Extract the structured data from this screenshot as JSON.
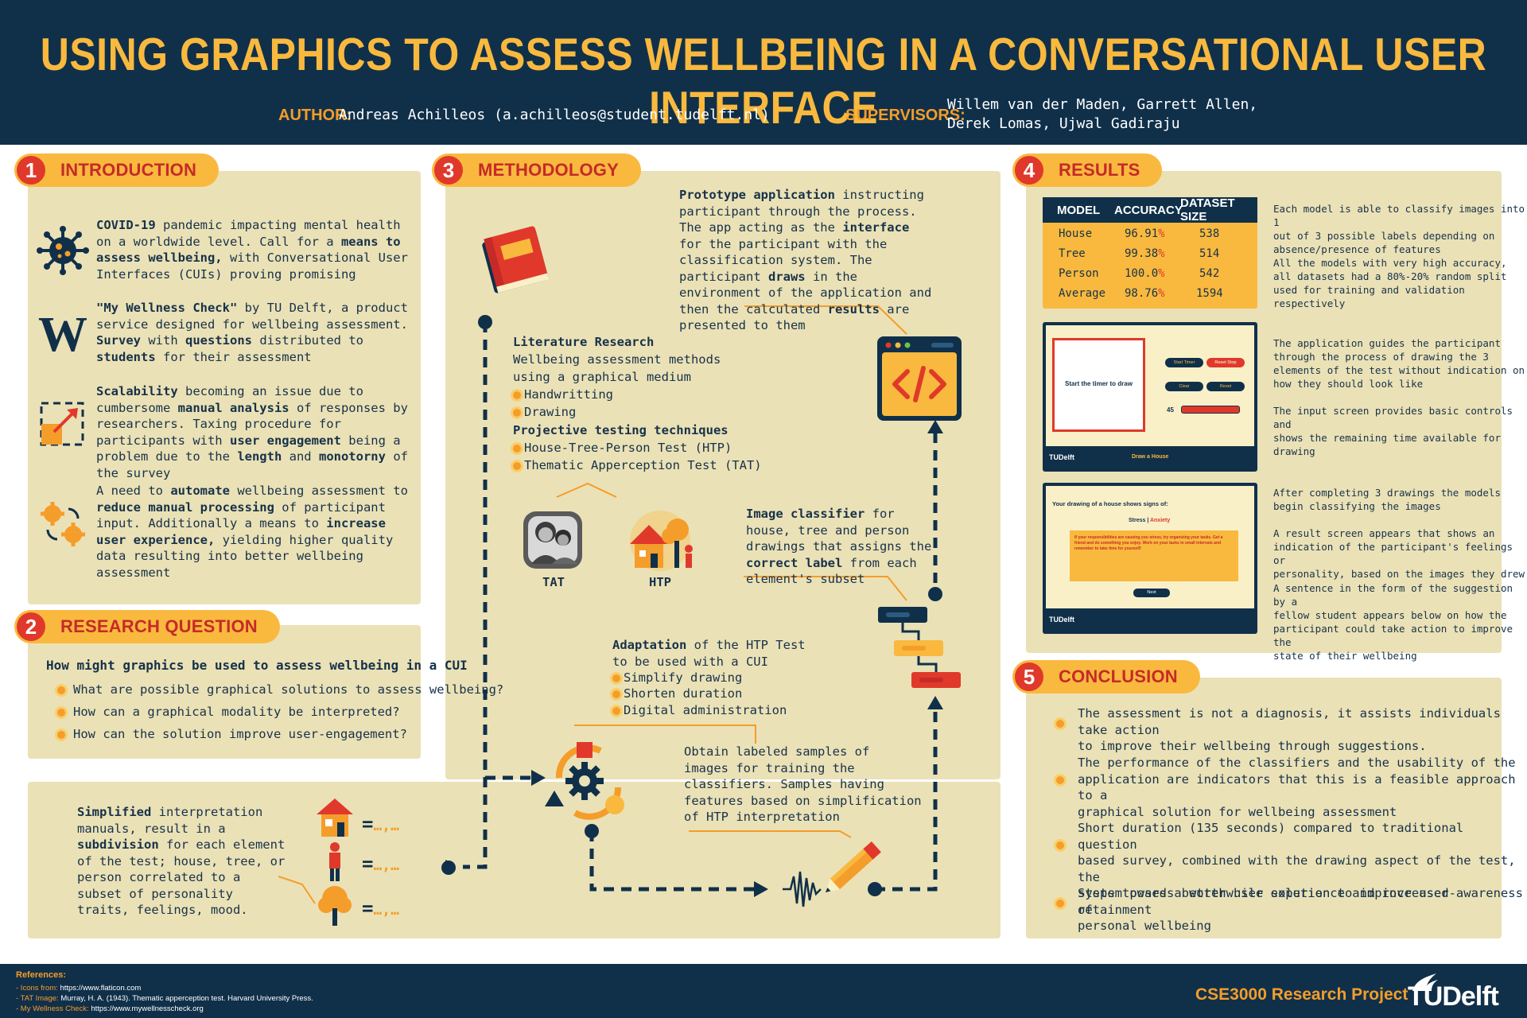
{
  "header": {
    "title": "USING GRAPHICS TO ASSESS WELLBEING IN A CONVERSATIONAL USER INTERFACE",
    "author_label": "AUTHOR:",
    "author": "Andreas Achilleos  (a.achilleos@student.tudelft.nl)",
    "supervisors_label": "SUPERVISORS:",
    "supervisors_line1": "Willem van der Maden, Garrett Allen,",
    "supervisors_line2": "Derek Lomas, Ujwal Gadiraju"
  },
  "sections": {
    "intro": {
      "num": "1",
      "title": "INTRODUCTION"
    },
    "research": {
      "num": "2",
      "title": "RESEARCH QUESTION"
    },
    "method": {
      "num": "3",
      "title": "METHODOLOGY"
    },
    "results": {
      "num": "4",
      "title": "RESULTS"
    },
    "conclusion": {
      "num": "5",
      "title": "CONCLUSION"
    }
  },
  "research_question": {
    "main": "How might graphics be used to assess wellbeing in a CUI",
    "subs": [
      "What are possible graphical solutions to assess wellbeing?",
      "How can a graphical modality be interpreted?",
      "How can the solution improve user-engagement?"
    ]
  },
  "methodology": {
    "lit_title": "Literature Research",
    "lit_line1": "Wellbeing assessment methods",
    "lit_line2": "using a graphical medium",
    "lit_items": [
      "Handwritting",
      "Drawing"
    ],
    "proj_title": "Projective testing techniques",
    "proj_items": [
      "House-Tree-Person Test (HTP)",
      "Thematic Apperception Test (TAT)"
    ],
    "tat_label": "TAT",
    "htp_label": "HTP",
    "adapt_items": [
      "Simplify drawing",
      "Shorten duration",
      "Digital administration"
    ],
    "samples_text": "Obtain labeled samples of\nimages for training the\nclassifiers. Samples having\nfeatures based on simplification\nof HTP interpretation",
    "equals_marks": [
      "=…,…",
      "=…,…",
      "=…,…"
    ]
  },
  "results": {
    "table": {
      "headers": [
        "MODEL",
        "ACCURACY",
        "DATASET SIZE"
      ],
      "rows": [
        {
          "model": "House",
          "acc": "96.91",
          "size": "538"
        },
        {
          "model": "Tree",
          "acc": "99.38",
          "size": "514"
        },
        {
          "model": "Person",
          "acc": "100.0",
          "size": "542"
        },
        {
          "model": "Average",
          "acc": "98.76",
          "size": "1594"
        }
      ],
      "pct": "%"
    },
    "desc1a": "Each model is able to classify images into 1\nout of 3 possible labels depending on\nabsence/presence of features",
    "desc1b": "All the models with very high accuracy,\nall datasets had a 80%-20% random split\nused for training and validation respectively",
    "desc2a": "The application guides the participant\nthrough the process of drawing the 3\nelements of the test without indication on\nhow they should look like",
    "desc2b": "The input screen provides basic controls and\nshows the remaining time available for\ndrawing",
    "desc3a": "After completing 3 drawings the models\nbegin classifying the images",
    "desc3b": "A result screen appears that shows an\nindication of the participant's feelings or\npersonality, based on the images they drew",
    "desc3c": "A sentence in the form of the suggestion by a\nfellow student appears below on how the\nparticipant could take action to improve the\nstate of their wellbeing",
    "shot1": {
      "canvas_text": "Start the timer to draw",
      "btn_start": "Start Timer",
      "btn_stop": "Reset Stop",
      "btn_clear": "Clear",
      "btn_reset": "Reset",
      "timer": "45",
      "footer_logo": "TUDelft",
      "footer_text": "Draw a House"
    },
    "shot2": {
      "heading": "Your drawing of a house shows signs of:",
      "labels": "Stress",
      "labels2": "Anxiety",
      "suggestion": "If your responsibilities are causing you stress, try organizing your tasks. Get a friend and do something you enjoy. Work on your tasks in small intervals and remember to take time for yourself!",
      "next": "Next",
      "footer_logo": "TUDelft"
    }
  },
  "conclusion": [
    "The assessment is not a diagnosis, it assists individuals take action\nto improve their wellbeing through suggestions.",
    "The performance of the classifiers and the usability of the\napplication are indicators that this is a feasible approach to a\ngraphical solution for wellbeing assessment",
    "Short duration (135 seconds) compared to traditional question\nbased survey, combined with the drawing aspect of the test, the\nsystem poses a worthwhile solution to improve user-retainment",
    "Steps towards better user experience and increased awareness of\npersonal wellbeing"
  ],
  "footer": {
    "refs_title": "References:",
    "refs": [
      {
        "k": "- Icons from: ",
        "v": "https://www.flaticon.com"
      },
      {
        "k": "- TAT Image: ",
        "v": "Murray, H. A. (1943). Thematic apperception test. Harvard University Press."
      },
      {
        "k": "- My Wellness Check: ",
        "v": "https://www.mywellnesscheck.org"
      }
    ],
    "project": "CSE3000 Research Project",
    "logo": "TUDelft"
  },
  "colors": {
    "navy": "#10304a",
    "yellow": "#f9b93e",
    "orange": "#f59d2a",
    "red": "#e0392b",
    "panel": "#ebe1b6"
  }
}
